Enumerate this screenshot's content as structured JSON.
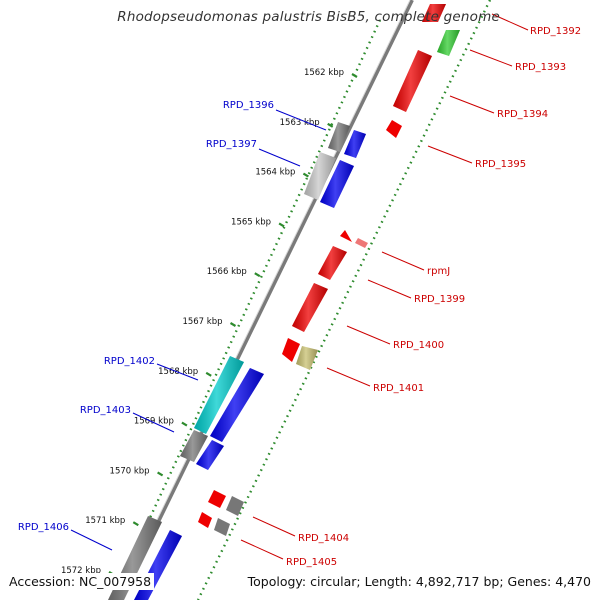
{
  "title": "Rhodopseudomonas palustris BisB5, complete genome",
  "accession_text": "Accession: NC_007958",
  "topology_text": "Topology: circular; Length: 4,892,717 bp; Genes: 4,470",
  "ticks": [
    "1562 kbp",
    "1563 kbp",
    "1564 kbp",
    "1565 kbp",
    "1566 kbp",
    "1567 kbp",
    "1568 kbp",
    "1569 kbp",
    "1570 kbp",
    "1571 kbp",
    "1572 kbp"
  ],
  "labels": {
    "rpd_1392": "RPD_1392",
    "rpd_1393": "RPD_1393",
    "rpd_1394": "RPD_1394",
    "rpd_1395": "RPD_1395",
    "rpmj": "rpmJ",
    "rpd_1399": "RPD_1399",
    "rpd_1400": "RPD_1400",
    "rpd_1401": "RPD_1401",
    "rpd_1404": "RPD_1404",
    "rpd_1405": "RPD_1405",
    "rpd_1396": "RPD_1396",
    "rpd_1397": "RPD_1397",
    "rpd_1402": "RPD_1402",
    "rpd_1403": "RPD_1403",
    "rpd_1406": "RPD_1406"
  },
  "colors": {
    "right_label": "#cc0000",
    "left_label": "#0000cc",
    "backbone": "#777777",
    "tick_ring": "#2e8b2e",
    "red_gene": "#ee0000",
    "blue_gene": "#0000ee",
    "gray_gene": "#777777",
    "light_gray_gene": "#c8c8c8",
    "cyan_gene": "#00cccc",
    "green_gene": "#33cc33",
    "olive_gene": "#c8c070",
    "pink_gene": "#ee6666"
  }
}
